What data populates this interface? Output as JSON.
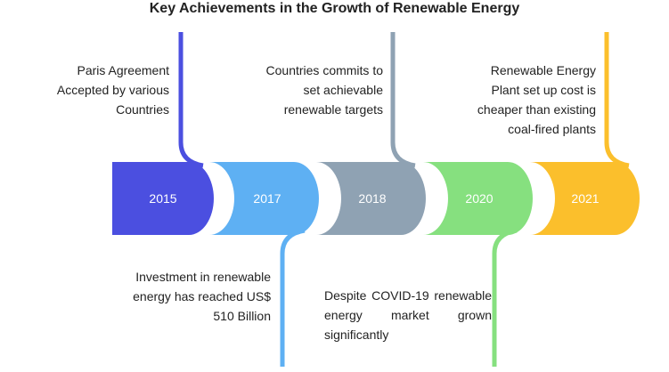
{
  "title": "Key Achievements in the Growth of Renewable Energy",
  "milestones": [
    {
      "year": "2015",
      "color": "#4B4FE0",
      "text": "Paris Agreement Accepted by various Countries"
    },
    {
      "year": "2017",
      "color": "#5EB0F3",
      "text": "Investment in renewable energy has reached US$ 510 Billion"
    },
    {
      "year": "2018",
      "color": "#8FA2B3",
      "text": "Countries commits to set achievable renewable targets"
    },
    {
      "year": "2020",
      "color": "#86E07F",
      "text": "Despite COVID-19 renewable energy market grown significantly"
    },
    {
      "year": "2021",
      "color": "#FBBF2C",
      "text": "Renewable Energy Plant set up cost is cheaper than existing coal-fired plants"
    }
  ]
}
